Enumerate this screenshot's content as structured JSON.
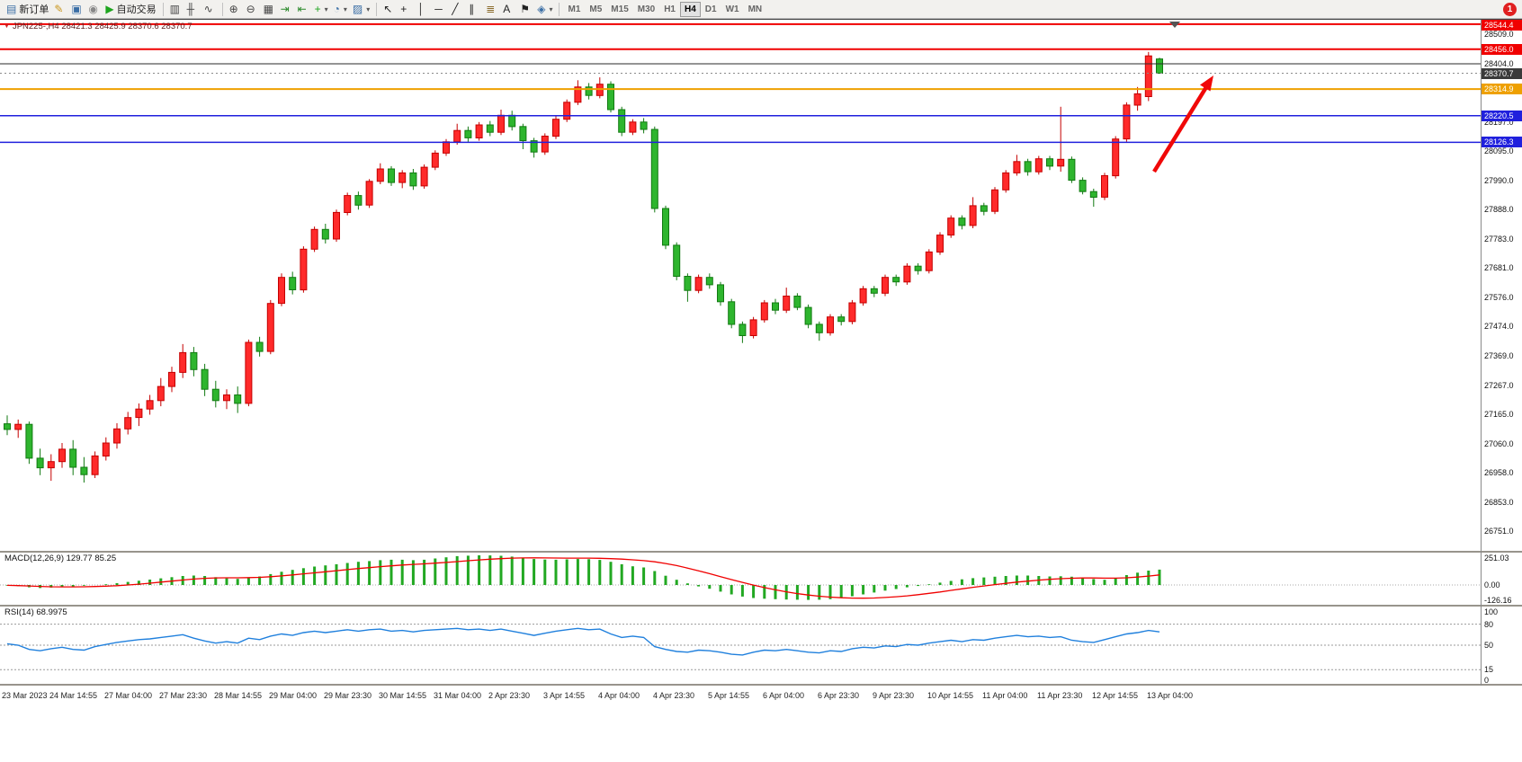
{
  "toolbar": {
    "notification_count": "1",
    "groups": [
      {
        "buttons": [
          {
            "name": "new-order",
            "glyph": "▤",
            "glyph_color": "#3a6ea5",
            "label": "新订单"
          },
          {
            "name": "metaeditor",
            "glyph": "✎",
            "glyph_color": "#c89418"
          },
          {
            "name": "market",
            "glyph": "▣",
            "glyph_color": "#3a6ea5"
          },
          {
            "name": "signals",
            "glyph": "◉",
            "glyph_color": "#888888"
          },
          {
            "name": "autotrading",
            "glyph": "▶",
            "glyph_color": "#1ea51e",
            "label": "自动交易"
          }
        ]
      },
      {
        "buttons": [
          {
            "name": "bar-chart",
            "glyph": "▥",
            "glyph_color": "#444444"
          },
          {
            "name": "candlestick-chart",
            "glyph": "╫",
            "glyph_color": "#444444"
          },
          {
            "name": "line-chart",
            "glyph": "∿",
            "glyph_color": "#444444"
          }
        ]
      },
      {
        "buttons": [
          {
            "name": "zoom-in",
            "glyph": "⊕",
            "glyph_color": "#444444"
          },
          {
            "name": "zoom-out",
            "glyph": "⊖",
            "glyph_color": "#444444"
          },
          {
            "name": "tile-windows",
            "glyph": "▦",
            "glyph_color": "#444444"
          },
          {
            "name": "auto-scroll",
            "glyph": "⇥",
            "glyph_color": "#2a8a2a"
          },
          {
            "name": "chart-shift",
            "glyph": "⇤",
            "glyph_color": "#2a8a2a"
          },
          {
            "name": "indicators",
            "glyph": "+",
            "glyph_color": "#1ea51e",
            "dropdown": true
          },
          {
            "name": "periods",
            "glyph": "◔",
            "glyph_color": "#3a6ea5",
            "dropdown": true
          },
          {
            "name": "templates",
            "glyph": "▨",
            "glyph_color": "#3a6ea5",
            "dropdown": true
          }
        ]
      },
      {
        "buttons": [
          {
            "name": "cursor",
            "glyph": "↖",
            "glyph_color": "#222222"
          },
          {
            "name": "crosshair",
            "glyph": "+",
            "glyph_color": "#222222"
          },
          {
            "name": "vertical-line",
            "glyph": "│",
            "glyph_color": "#222222"
          },
          {
            "name": "horizontal-line",
            "glyph": "─",
            "glyph_color": "#222222"
          },
          {
            "name": "trendline",
            "glyph": "╱",
            "glyph_color": "#222222"
          },
          {
            "name": "equidistant-channel",
            "glyph": "∥",
            "glyph_color": "#222222"
          },
          {
            "name": "fibonacci",
            "glyph": "≣",
            "glyph_color": "#8a6a2a"
          },
          {
            "name": "text",
            "glyph": "A",
            "glyph_color": "#222222"
          },
          {
            "name": "text-label",
            "glyph": "⚑",
            "glyph_color": "#222222"
          },
          {
            "name": "arrows",
            "glyph": "◈",
            "glyph_color": "#3a6ea5",
            "dropdown": true
          }
        ]
      },
      {
        "timeframes": [
          "M1",
          "M5",
          "M15",
          "M30",
          "H1",
          "H4",
          "D1",
          "W1",
          "MN"
        ],
        "active": "H4"
      }
    ]
  },
  "chart": {
    "symbol_header": "JPN225-,H4 28421.3 28425.9 28370.6 28370.7",
    "colors": {
      "up": "#ff2a2a",
      "up_border": "#c40000",
      "down": "#2eb52e",
      "down_border": "#127a12",
      "macd_bar": "#22a822",
      "macd_signal": "#f00000",
      "rsi_line": "#2080dd",
      "arrow": "#f00808"
    }
  },
  "panes": {
    "macd_label": "MACD(12,26,9) 129.77 85.25",
    "rsi_label": "RSI(14) 68.9975"
  },
  "chart_data": {
    "type": "candlestick",
    "symbol": "JPN225-",
    "timeframe": "H4",
    "last_ohlc": {
      "open": 28421.3,
      "high": 28425.9,
      "low": 28370.6,
      "close": 28370.7
    },
    "price_axis_ticks": [
      "28509.0",
      "28404.0",
      "28197.0",
      "28095.0",
      "27990.0",
      "27888.0",
      "27783.0",
      "27681.0",
      "27576.0",
      "27474.0",
      "27369.0",
      "27267.0",
      "27165.0",
      "27060.0",
      "26958.0",
      "26853.0",
      "26751.0"
    ],
    "price_labels": [
      {
        "text": "28544.4",
        "price": 28544.4,
        "bg": "#f00000"
      },
      {
        "text": "28456.0",
        "price": 28456.0,
        "bg": "#f00000"
      },
      {
        "text": "28370.7",
        "price": 28370.7,
        "bg": "#3a3a3a"
      },
      {
        "text": "28314.9",
        "price": 28314.9,
        "bg": "#eea000"
      },
      {
        "text": "28220.5",
        "price": 28220.5,
        "bg": "#2020dd"
      },
      {
        "text": "28126.3",
        "price": 28126.3,
        "bg": "#2020dd"
      }
    ],
    "hlines": [
      {
        "price": 28544.4,
        "color": "#f00000",
        "width": 2
      },
      {
        "price": 28456.0,
        "color": "#f00000",
        "width": 2
      },
      {
        "price": 28404.0,
        "color": "#2a2a2a",
        "width": 1
      },
      {
        "price": 28314.9,
        "color": "#eea000",
        "width": 2
      },
      {
        "price": 28220.5,
        "color": "#2020dd",
        "width": 1.5
      },
      {
        "price": 28126.3,
        "color": "#2020dd",
        "width": 1.5
      }
    ],
    "time_labels": [
      "23 Mar 2023",
      "24 Mar 14:55",
      "27 Mar 04:00",
      "27 Mar 23:30",
      "28 Mar 14:55",
      "29 Mar 04:00",
      "29 Mar 23:30",
      "30 Mar 14:55",
      "31 Mar 04:00",
      "2 Apr 23:30",
      "3 Apr 14:55",
      "4 Apr 04:00",
      "4 Apr 23:30",
      "5 Apr 14:55",
      "6 Apr 04:00",
      "6 Apr 23:30",
      "9 Apr 23:30",
      "10 Apr 14:55",
      "11 Apr 04:00",
      "11 Apr 23:30",
      "12 Apr 14:55",
      "13 Apr 04:00"
    ],
    "ohlc": [
      [
        27130,
        27160,
        27090,
        27110
      ],
      [
        27110,
        27145,
        27080,
        27128
      ],
      [
        27128,
        27138,
        26988,
        27008
      ],
      [
        27008,
        27042,
        26948,
        26974
      ],
      [
        26974,
        27022,
        26928,
        26996
      ],
      [
        26996,
        27062,
        26974,
        27040
      ],
      [
        27040,
        27072,
        26948,
        26976
      ],
      [
        26976,
        27012,
        26922,
        26950
      ],
      [
        26950,
        27032,
        26938,
        27016
      ],
      [
        27016,
        27082,
        27000,
        27062
      ],
      [
        27062,
        27132,
        27042,
        27112
      ],
      [
        27112,
        27172,
        27092,
        27152
      ],
      [
        27152,
        27202,
        27122,
        27182
      ],
      [
        27182,
        27232,
        27162,
        27212
      ],
      [
        27212,
        27292,
        27192,
        27262
      ],
      [
        27262,
        27332,
        27242,
        27312
      ],
      [
        27312,
        27412,
        27292,
        27382
      ],
      [
        27382,
        27402,
        27298,
        27322
      ],
      [
        27322,
        27342,
        27228,
        27252
      ],
      [
        27252,
        27282,
        27188,
        27212
      ],
      [
        27212,
        27252,
        27182,
        27232
      ],
      [
        27232,
        27262,
        27168,
        27202
      ],
      [
        27202,
        27428,
        27192,
        27418
      ],
      [
        27418,
        27438,
        27368,
        27386
      ],
      [
        27386,
        27568,
        27376,
        27556
      ],
      [
        27556,
        27662,
        27546,
        27648
      ],
      [
        27648,
        27668,
        27588,
        27604
      ],
      [
        27604,
        27758,
        27594,
        27748
      ],
      [
        27748,
        27828,
        27738,
        27818
      ],
      [
        27818,
        27838,
        27768,
        27784
      ],
      [
        27784,
        27888,
        27774,
        27878
      ],
      [
        27878,
        27948,
        27868,
        27938
      ],
      [
        27938,
        27952,
        27888,
        27904
      ],
      [
        27904,
        27996,
        27894,
        27988
      ],
      [
        27988,
        28052,
        27978,
        28032
      ],
      [
        28032,
        28042,
        27972,
        27984
      ],
      [
        27984,
        28028,
        27964,
        28018
      ],
      [
        28018,
        28032,
        27958,
        27972
      ],
      [
        27972,
        28048,
        27962,
        28038
      ],
      [
        28038,
        28098,
        28028,
        28088
      ],
      [
        28088,
        28138,
        28078,
        28128
      ],
      [
        28128,
        28192,
        28118,
        28168
      ],
      [
        28168,
        28182,
        28128,
        28142
      ],
      [
        28142,
        28198,
        28132,
        28188
      ],
      [
        28188,
        28202,
        28148,
        28162
      ],
      [
        28162,
        28242,
        28152,
        28222
      ],
      [
        28222,
        28238,
        28168,
        28182
      ],
      [
        28182,
        28192,
        28102,
        28132
      ],
      [
        28132,
        28142,
        28072,
        28092
      ],
      [
        28092,
        28158,
        28082,
        28148
      ],
      [
        28148,
        28218,
        28138,
        28208
      ],
      [
        28208,
        28278,
        28198,
        28268
      ],
      [
        28268,
        28346,
        28258,
        28322
      ],
      [
        28322,
        28336,
        28278,
        28292
      ],
      [
        28292,
        28356,
        28282,
        28332
      ],
      [
        28332,
        28342,
        28232,
        28242
      ],
      [
        28242,
        28252,
        28148,
        28162
      ],
      [
        28162,
        28208,
        28152,
        28198
      ],
      [
        28198,
        28212,
        28158,
        28172
      ],
      [
        28172,
        28182,
        27878,
        27892
      ],
      [
        27892,
        27902,
        27748,
        27762
      ],
      [
        27762,
        27772,
        27638,
        27652
      ],
      [
        27652,
        27662,
        27562,
        27602
      ],
      [
        27602,
        27658,
        27592,
        27648
      ],
      [
        27648,
        27662,
        27608,
        27622
      ],
      [
        27622,
        27632,
        27548,
        27562
      ],
      [
        27562,
        27572,
        27468,
        27482
      ],
      [
        27482,
        27492,
        27416,
        27442
      ],
      [
        27442,
        27508,
        27432,
        27498
      ],
      [
        27498,
        27568,
        27488,
        27558
      ],
      [
        27558,
        27572,
        27518,
        27532
      ],
      [
        27532,
        27612,
        27522,
        27582
      ],
      [
        27582,
        27592,
        27532,
        27542
      ],
      [
        27542,
        27552,
        27468,
        27482
      ],
      [
        27482,
        27492,
        27424,
        27452
      ],
      [
        27452,
        27518,
        27442,
        27508
      ],
      [
        27508,
        27518,
        27478,
        27492
      ],
      [
        27492,
        27568,
        27482,
        27558
      ],
      [
        27558,
        27618,
        27548,
        27608
      ],
      [
        27608,
        27618,
        27578,
        27592
      ],
      [
        27592,
        27658,
        27582,
        27648
      ],
      [
        27648,
        27658,
        27618,
        27632
      ],
      [
        27632,
        27698,
        27622,
        27688
      ],
      [
        27688,
        27698,
        27658,
        27672
      ],
      [
        27672,
        27748,
        27662,
        27738
      ],
      [
        27738,
        27808,
        27728,
        27798
      ],
      [
        27798,
        27868,
        27788,
        27858
      ],
      [
        27858,
        27868,
        27818,
        27832
      ],
      [
        27832,
        27932,
        27822,
        27902
      ],
      [
        27902,
        27912,
        27868,
        27882
      ],
      [
        27882,
        27968,
        27872,
        27958
      ],
      [
        27958,
        28028,
        27948,
        28018
      ],
      [
        28018,
        28082,
        28008,
        28058
      ],
      [
        28058,
        28068,
        28008,
        28022
      ],
      [
        28022,
        28078,
        28012,
        28068
      ],
      [
        28068,
        28078,
        28028,
        28042
      ],
      [
        28042,
        28252,
        28022,
        28066
      ],
      [
        28066,
        28076,
        27982,
        27992
      ],
      [
        27992,
        28002,
        27942,
        27952
      ],
      [
        27952,
        27962,
        27898,
        27932
      ],
      [
        27932,
        28018,
        27922,
        28008
      ],
      [
        28008,
        28148,
        27998,
        28138
      ],
      [
        28138,
        28268,
        28128,
        28258
      ],
      [
        28258,
        28322,
        28238,
        28298
      ],
      [
        28288,
        28446,
        28272,
        28432
      ],
      [
        28421.3,
        28425.9,
        28370.6,
        28370.7
      ]
    ],
    "macd": {
      "axis": [
        {
          "text": "251.03",
          "value": 251.03
        },
        {
          "text": "0.00",
          "value": 0
        },
        {
          "text": "-126.16",
          "value": -126.16
        }
      ],
      "histogram": [
        -5,
        -10,
        -20,
        -26,
        -22,
        -16,
        -12,
        -6,
        0,
        6,
        15,
        26,
        36,
        46,
        56,
        66,
        76,
        80,
        76,
        66,
        56,
        52,
        58,
        72,
        92,
        112,
        128,
        142,
        156,
        166,
        176,
        186,
        196,
        202,
        210,
        214,
        214,
        210,
        214,
        224,
        234,
        244,
        248,
        251,
        250,
        247,
        240,
        230,
        220,
        215,
        214,
        217,
        220,
        218,
        212,
        196,
        176,
        158,
        148,
        118,
        78,
        44,
        14,
        -12,
        -32,
        -56,
        -80,
        -98,
        -110,
        -116,
        -120,
        -123,
        -125,
        -126,
        -125,
        -120,
        -110,
        -96,
        -80,
        -64,
        -48,
        -34,
        -20,
        -8,
        6,
        20,
        34,
        48,
        58,
        64,
        70,
        76,
        80,
        80,
        76,
        72,
        74,
        70,
        60,
        50,
        44,
        60,
        84,
        104,
        122,
        129.77
      ],
      "signal": [
        -3,
        -5,
        -8,
        -12,
        -15,
        -16,
        -16,
        -15,
        -13,
        -10,
        -6,
        0,
        7,
        15,
        24,
        33,
        42,
        50,
        56,
        60,
        61,
        61,
        62,
        65,
        70,
        77,
        85,
        94,
        103,
        112,
        121,
        130,
        139,
        147,
        155,
        162,
        169,
        174,
        179,
        185,
        191,
        198,
        205,
        212,
        218,
        223,
        227,
        229,
        230,
        229,
        228,
        227,
        227,
        227,
        226,
        223,
        219,
        213,
        206,
        196,
        182,
        164,
        143,
        120,
        96,
        71,
        46,
        22,
        -1,
        -22,
        -41,
        -58,
        -73,
        -85,
        -95,
        -103,
        -108,
        -111,
        -112,
        -110,
        -106,
        -100,
        -92,
        -82,
        -71,
        -59,
        -46,
        -33,
        -20,
        -8,
        3,
        14,
        24,
        33,
        41,
        48,
        53,
        57,
        59,
        59,
        58,
        58,
        61,
        67,
        75,
        85.25
      ]
    },
    "rsi": {
      "axis": [
        {
          "text": "100",
          "value": 100
        },
        {
          "text": "80",
          "value": 80
        },
        {
          "text": "50",
          "value": 50
        },
        {
          "text": "15",
          "value": 15
        },
        {
          "text": "0",
          "value": 0
        }
      ],
      "levels": [
        80,
        50,
        15
      ],
      "values": [
        52,
        50,
        44,
        42,
        45,
        47,
        44,
        43,
        48,
        51,
        54,
        56,
        58,
        59,
        61,
        63,
        65,
        60,
        56,
        53,
        55,
        53,
        60,
        58,
        63,
        66,
        64,
        68,
        70,
        68,
        70,
        72,
        70,
        72,
        73,
        70,
        71,
        69,
        71,
        72,
        73,
        74,
        72,
        73,
        71,
        73,
        70,
        67,
        64,
        67,
        70,
        72,
        74,
        72,
        73,
        66,
        61,
        63,
        61,
        48,
        44,
        41,
        40,
        43,
        42,
        40,
        37,
        36,
        40,
        43,
        42,
        44,
        42,
        40,
        39,
        42,
        41,
        45,
        47,
        46,
        49,
        48,
        51,
        50,
        53,
        55,
        57,
        55,
        58,
        57,
        60,
        62,
        64,
        62,
        63,
        61,
        62,
        57,
        55,
        54,
        58,
        62,
        66,
        68,
        71,
        68.9975
      ]
    }
  }
}
